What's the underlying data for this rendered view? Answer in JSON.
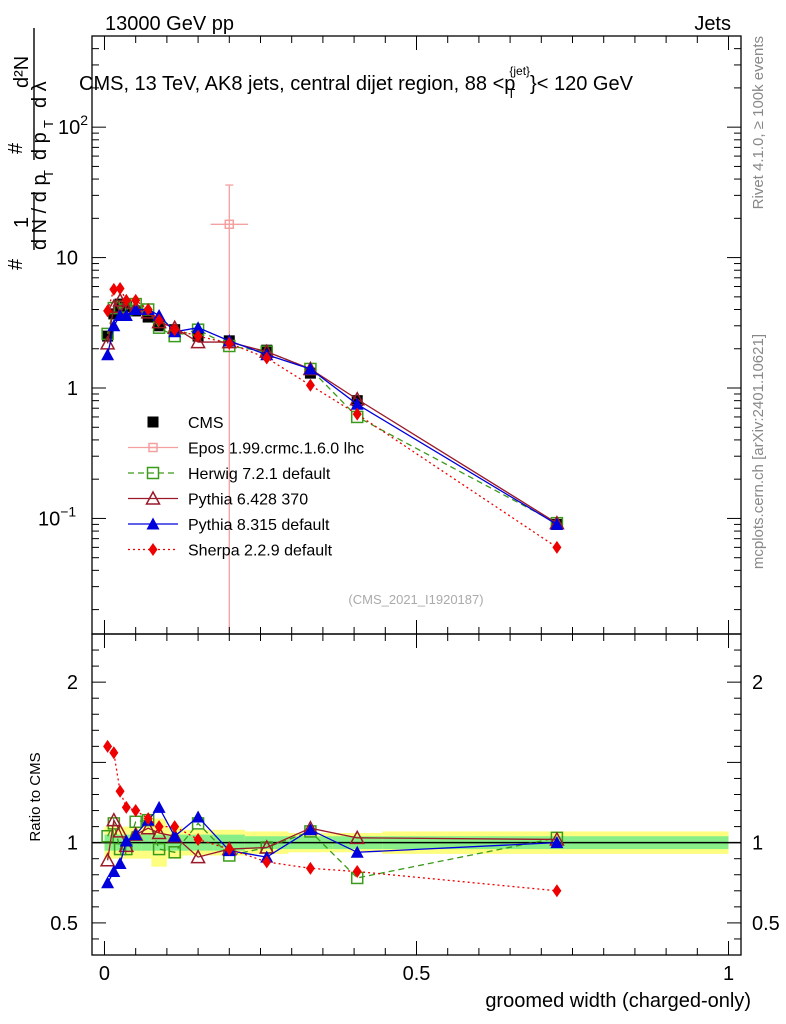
{
  "header": {
    "left": "13000 GeV pp",
    "right": "Jets",
    "title_main": "CMS, 13 TeV, AK8 jets, central dijet region, 88 <p",
    "title_sup": "{jet}",
    "title_sub": "T",
    "title_end": "}< 120 GeV"
  },
  "side_labels": {
    "rivet": "Rivet 4.1.0, ≥ 100k events",
    "mcplots": "mcplots.cern.ch [arXiv:2401.10621]"
  },
  "analysis_id": "(CMS_2021_I1920187)",
  "colors": {
    "CMS": "#000000",
    "Epos": "#f4a0a0",
    "Herwig": "#3a9a1a",
    "Pythia6": "#9a1a2a",
    "Pythia8": "#0000dd",
    "Sherpa": "#ee0000",
    "band_inner": "#88ee88",
    "band_outer": "#fdfd80"
  },
  "chart_data": [
    {
      "type": "scatter",
      "title": "CMS, 13 TeV, AK8 jets, central dijet region, 88 <p_T^{jet}< 120 GeV",
      "ylabel": "1/(dN/dpT) d²N/(dpT dλ)",
      "yscale": "log",
      "ylim": [
        0.013,
        500
      ],
      "xlim": [
        -0.02,
        1.02
      ],
      "y_ticks": [
        {
          "value": 0.1,
          "label": "10",
          "sup": "−1"
        },
        {
          "value": 1,
          "label": "1",
          "sup": ""
        },
        {
          "value": 10,
          "label": "10",
          "sup": ""
        },
        {
          "value": 100,
          "label": "10",
          "sup": "2"
        }
      ],
      "legend": [
        "CMS",
        "Epos 1.99.crmc.1.6.0 lhc",
        "Herwig 7.2.1 default",
        "Pythia 6.428 370",
        "Pythia 8.315 default",
        "Sherpa 2.2.9 default"
      ],
      "series": [
        {
          "name": "CMS",
          "key": "CMS",
          "marker": "square-filled",
          "line": "none",
          "x": [
            0.005,
            0.015,
            0.025,
            0.035,
            0.05,
            0.07,
            0.0875,
            0.1125,
            0.15,
            0.2,
            0.26,
            0.33,
            0.405,
            0.725
          ],
          "y": [
            2.5,
            3.7,
            4.4,
            4.2,
            3.9,
            3.5,
            3.0,
            2.8,
            2.5,
            2.3,
            1.95,
            1.3,
            0.8,
            0.09
          ]
        },
        {
          "name": "Epos 1.99.crmc.1.6.0 lhc",
          "key": "Epos",
          "marker": "cross-square",
          "line": "solid",
          "x": [
            0.2
          ],
          "y": [
            18.0
          ],
          "yerr": [
            [
              0.013,
              36.0
            ]
          ],
          "xerr": [
            0.03
          ]
        },
        {
          "name": "Herwig 7.2.1 default",
          "key": "Herwig",
          "marker": "square-open",
          "line": "dashed",
          "x": [
            0.005,
            0.015,
            0.025,
            0.035,
            0.05,
            0.07,
            0.0875,
            0.1125,
            0.15,
            0.2,
            0.26,
            0.33,
            0.405,
            0.725
          ],
          "y": [
            2.6,
            4.1,
            4.2,
            4.0,
            4.4,
            4.0,
            2.9,
            2.5,
            2.8,
            2.1,
            1.9,
            1.4,
            0.6,
            0.092
          ]
        },
        {
          "name": "Pythia 6.428 370",
          "key": "Pythia6",
          "marker": "triangle-open",
          "line": "solid",
          "x": [
            0.005,
            0.015,
            0.025,
            0.035,
            0.05,
            0.07,
            0.0875,
            0.1125,
            0.15,
            0.2,
            0.26,
            0.33,
            0.405,
            0.725
          ],
          "y": [
            2.2,
            4.2,
            4.7,
            4.1,
            4.1,
            3.8,
            3.2,
            2.9,
            2.25,
            2.25,
            1.9,
            1.4,
            0.82,
            0.092
          ]
        },
        {
          "name": "Pythia 8.315 default",
          "key": "Pythia8",
          "marker": "triangle-filled",
          "line": "solid",
          "x": [
            0.005,
            0.015,
            0.025,
            0.035,
            0.05,
            0.07,
            0.0875,
            0.1125,
            0.15,
            0.2,
            0.26,
            0.33,
            0.405,
            0.725
          ],
          "y": [
            1.8,
            3.0,
            3.6,
            3.6,
            4.0,
            4.0,
            3.6,
            2.7,
            2.9,
            2.3,
            1.8,
            1.4,
            0.75,
            0.09
          ]
        },
        {
          "name": "Sherpa 2.2.9 default",
          "key": "Sherpa",
          "marker": "diamond-filled",
          "line": "dotted",
          "x": [
            0.005,
            0.015,
            0.025,
            0.035,
            0.05,
            0.07,
            0.0875,
            0.1125,
            0.15,
            0.2,
            0.26,
            0.33,
            0.405,
            0.725
          ],
          "y": [
            3.9,
            5.7,
            5.8,
            4.7,
            4.7,
            4.0,
            3.3,
            2.8,
            2.5,
            2.2,
            1.7,
            1.05,
            0.63,
            0.06
          ]
        }
      ]
    },
    {
      "type": "scatter",
      "ylabel": "Ratio to CMS",
      "xlabel": "groomed width (charged-only)",
      "ylim": [
        0.3,
        2.3
      ],
      "xlim": [
        -0.02,
        1.02
      ],
      "y_ticks": [
        {
          "value": 0.5,
          "label": "0.5"
        },
        {
          "value": 1,
          "label": "1"
        },
        {
          "value": 2,
          "label": "2"
        }
      ],
      "x_ticks": [
        {
          "value": 0,
          "label": "0"
        },
        {
          "value": 0.5,
          "label": "0.5"
        },
        {
          "value": 1,
          "label": "1"
        }
      ],
      "bands": {
        "edges": [
          0,
          0.01,
          0.02,
          0.03,
          0.04,
          0.06,
          0.075,
          0.1,
          0.125,
          0.175,
          0.225,
          0.295,
          0.365,
          0.445,
          1.0
        ],
        "inner": [
          0.05,
          0.05,
          0.05,
          0.05,
          0.05,
          0.05,
          0.05,
          0.05,
          0.05,
          0.05,
          0.04,
          0.04,
          0.04,
          0.04
        ],
        "outer": [
          0.1,
          0.1,
          0.1,
          0.1,
          0.1,
          0.1,
          0.15,
          0.1,
          0.08,
          0.08,
          0.07,
          0.06,
          0.06,
          0.07
        ]
      },
      "series": [
        {
          "name": "Herwig 7.2.1 default",
          "key": "Herwig",
          "x": [
            0.005,
            0.015,
            0.025,
            0.035,
            0.05,
            0.07,
            0.0875,
            0.1125,
            0.15,
            0.2,
            0.26,
            0.33,
            0.405,
            0.725
          ],
          "y": [
            1.04,
            1.12,
            0.96,
            0.96,
            1.13,
            1.14,
            0.96,
            0.94,
            1.12,
            0.92,
            0.97,
            1.07,
            0.78,
            1.03
          ]
        },
        {
          "name": "Pythia 6.428 370",
          "key": "Pythia6",
          "x": [
            0.005,
            0.015,
            0.025,
            0.035,
            0.05,
            0.07,
            0.0875,
            0.1125,
            0.15,
            0.2,
            0.26,
            0.33,
            0.405,
            0.725
          ],
          "y": [
            0.89,
            1.14,
            1.07,
            0.98,
            1.05,
            1.09,
            1.06,
            1.04,
            0.91,
            0.96,
            0.97,
            1.09,
            1.03,
            1.02
          ]
        },
        {
          "name": "Pythia 8.315 default",
          "key": "Pythia8",
          "x": [
            0.005,
            0.015,
            0.025,
            0.035,
            0.05,
            0.07,
            0.0875,
            0.1125,
            0.15,
            0.2,
            0.26,
            0.33,
            0.405,
            0.725
          ],
          "y": [
            0.75,
            0.82,
            0.87,
            1.01,
            1.05,
            1.14,
            1.22,
            1.04,
            1.16,
            0.95,
            0.91,
            1.08,
            0.94,
            1.0
          ]
        },
        {
          "name": "Sherpa 2.2.9 default",
          "key": "Sherpa",
          "x": [
            0.005,
            0.015,
            0.025,
            0.035,
            0.05,
            0.07,
            0.0875,
            0.1125,
            0.15,
            0.2,
            0.26,
            0.33,
            0.405,
            0.725
          ],
          "y": [
            1.6,
            1.56,
            1.32,
            1.22,
            1.2,
            1.15,
            1.1,
            1.1,
            1.02,
            0.96,
            0.88,
            0.84,
            0.82,
            0.7
          ]
        }
      ]
    }
  ]
}
